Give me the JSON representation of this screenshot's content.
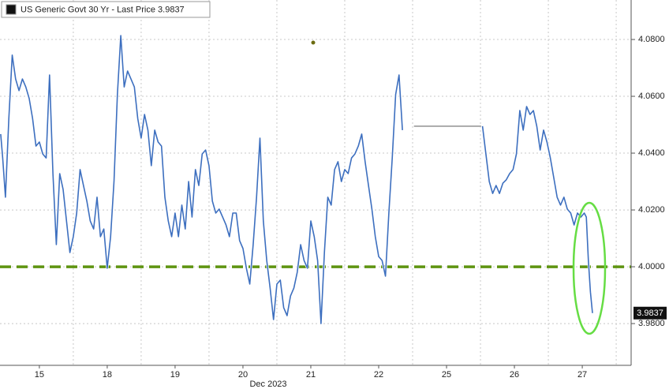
{
  "chart_data": {
    "type": "line",
    "legend": "top-left",
    "xlabel": "Dec 2023",
    "xlim": [
      -0.08,
      9.22
    ],
    "xticks": [
      {
        "value": 0.5,
        "label": "15"
      },
      {
        "value": 1.5,
        "label": "18"
      },
      {
        "value": 2.5,
        "label": "19"
      },
      {
        "value": 3.5,
        "label": "20"
      },
      {
        "value": 4.5,
        "label": "21"
      },
      {
        "value": 5.5,
        "label": "22"
      },
      {
        "value": 6.5,
        "label": "25"
      },
      {
        "value": 7.5,
        "label": "26"
      },
      {
        "value": 8.5,
        "label": "27"
      }
    ],
    "xgrid": [
      1,
      2,
      3,
      4,
      5,
      6,
      7,
      8,
      9
    ],
    "ylim": [
      3.9653,
      4.0939
    ],
    "yticks": [
      {
        "value": 3.98,
        "label": "3.9800"
      },
      {
        "value": 4.0,
        "label": "4.0000"
      },
      {
        "value": 4.02,
        "label": "4.0200"
      },
      {
        "value": 4.04,
        "label": "4.0400"
      },
      {
        "value": 4.06,
        "label": "4.0600"
      },
      {
        "value": 4.08,
        "label": "4.0800"
      }
    ],
    "grid": true,
    "reference_line": {
      "y": 4.0,
      "color": "#5e9410"
    },
    "series": [
      {
        "name": "US Generic Govt 30 Yr - Last Price 3.9837",
        "color": "#3d6fbf",
        "x": [
          -0.07,
          -0.04,
          0,
          0.05,
          0.1,
          0.15,
          0.2,
          0.25,
          0.3,
          0.35,
          0.4,
          0.45,
          0.5,
          0.55,
          0.6,
          0.65,
          0.7,
          0.75,
          0.8,
          0.85,
          0.9,
          0.95,
          1.0,
          1.05,
          1.1,
          1.15,
          1.2,
          1.25,
          1.3,
          1.35,
          1.4,
          1.45,
          1.5,
          1.55,
          1.6,
          1.65,
          1.7,
          1.75,
          1.8,
          1.85,
          1.9,
          1.95,
          2.0,
          2.05,
          2.1,
          2.15,
          2.2,
          2.25,
          2.3,
          2.35,
          2.4,
          2.45,
          2.5,
          2.55,
          2.6,
          2.65,
          2.7,
          2.75,
          2.8,
          2.85,
          2.9,
          2.95,
          3.0,
          3.05,
          3.1,
          3.15,
          3.2,
          3.25,
          3.3,
          3.35,
          3.4,
          3.45,
          3.5,
          3.55,
          3.6,
          3.65,
          3.7,
          3.75,
          3.8,
          3.85,
          3.9,
          3.95,
          4.0,
          4.05,
          4.1,
          4.15,
          4.2,
          4.25,
          4.3,
          4.35,
          4.4,
          4.45,
          4.5,
          4.55,
          4.6,
          4.65,
          4.7,
          4.75,
          4.8,
          4.85,
          4.9,
          4.95,
          5.0,
          5.05,
          5.1,
          5.15,
          5.2,
          5.25,
          5.3,
          5.35,
          5.4,
          5.45,
          5.5,
          5.55,
          5.6,
          5.65,
          5.7,
          5.75,
          5.8,
          5.85,
          5.93,
          7.03,
          7.08,
          7.13,
          7.18,
          7.23,
          7.28,
          7.33,
          7.38,
          7.43,
          7.48,
          7.53,
          7.58,
          7.63,
          7.68,
          7.73,
          7.78,
          7.83,
          7.88,
          7.93,
          7.98,
          8.03,
          8.08,
          8.13,
          8.18,
          8.23,
          8.28,
          8.33,
          8.38,
          8.43,
          8.48,
          8.53,
          8.56,
          8.59,
          8.62,
          8.65
        ],
        "values": [
          4.0467,
          4.0383,
          4.0245,
          4.0522,
          4.0745,
          4.0661,
          4.062,
          4.0661,
          4.0633,
          4.0592,
          4.0522,
          4.0425,
          4.0439,
          4.0397,
          4.0383,
          4.0675,
          4.0328,
          4.0078,
          4.0328,
          4.0272,
          4.0161,
          4.005,
          4.0106,
          4.0189,
          4.0342,
          4.0286,
          4.0231,
          4.0161,
          4.0133,
          4.0245,
          4.0106,
          4.0133,
          3.9995,
          4.0106,
          4.03,
          4.0606,
          4.0814,
          4.0633,
          4.0689,
          4.0661,
          4.0633,
          4.0522,
          4.0453,
          4.0536,
          4.0481,
          4.0356,
          4.0481,
          4.0439,
          4.0425,
          4.0245,
          4.0161,
          4.0106,
          4.0189,
          4.0106,
          4.0217,
          4.0133,
          4.03,
          4.0175,
          4.0342,
          4.0286,
          4.0397,
          4.0411,
          4.0356,
          4.0231,
          4.0189,
          4.0203,
          4.0175,
          4.0147,
          4.0106,
          4.0189,
          4.0189,
          4.0092,
          4.0064,
          3.9995,
          3.9939,
          4.0078,
          4.0245,
          4.0453,
          4.0161,
          4.0022,
          3.9925,
          3.9814,
          3.9939,
          3.9953,
          3.9856,
          3.9828,
          3.9897,
          3.9925,
          3.9981,
          4.0078,
          4.0022,
          3.9995,
          4.0161,
          4.0106,
          4.0022,
          3.98,
          4.005,
          4.0245,
          4.0217,
          4.0342,
          4.037,
          4.03,
          4.0342,
          4.0328,
          4.0383,
          4.0397,
          4.0425,
          4.0467,
          4.037,
          4.0286,
          4.0203,
          4.0106,
          4.0036,
          4.0022,
          3.9967,
          4.0189,
          4.0383,
          4.0606,
          4.0675,
          4.0481,
          null,
          4.0495,
          4.0397,
          4.03,
          4.0258,
          4.0286,
          4.0258,
          4.0294,
          4.0306,
          4.0328,
          4.0342,
          4.0397,
          4.055,
          4.0481,
          4.0564,
          4.0536,
          4.055,
          4.0495,
          4.0411,
          4.0481,
          4.0439,
          4.0383,
          4.0314,
          4.0245,
          4.0217,
          4.0245,
          4.0203,
          4.0189,
          4.0147,
          4.0189,
          4.0175,
          4.0189,
          4.0175,
          4.0022,
          3.9911,
          3.9837
        ]
      },
      {
        "color": "#9a9a9a",
        "x": [
          6.02,
          7.01
        ],
        "values": [
          4.0495,
          4.0495
        ]
      }
    ]
  }
}
